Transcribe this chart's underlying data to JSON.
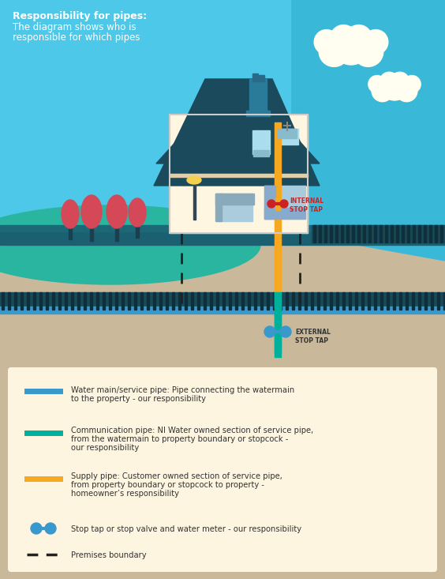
{
  "bg_sky": "#4dc8e8",
  "bg_ground": "#c9b99a",
  "hill_teal": "#2ab5a0",
  "hill_blue_right": "#3ab8d8",
  "road_dark": "#1a6070",
  "road_top": "#1d6878",
  "house_wall": "#fef6e0",
  "house_roof": "#1b4a5c",
  "chimney_blue": "#2a7a9a",
  "window_blue": "#4ab8d8",
  "fence_dark": "#1a4a5a",
  "tree_trunk": "#1a4050",
  "tree_red": "#d44858",
  "water_main": "#3a99cc",
  "comm_pipe": "#00b09a",
  "supply_pipe": "#f5a820",
  "stop_tap_blue": "#3a99cc",
  "int_stop_red": "#cc2222",
  "legend_bg": "#fdf5e0",
  "text_dark": "#333333",
  "cloud_color": "#fffef0",
  "title1": "Responsibility for pipes:",
  "title2": "The diagram shows who is",
  "title3": "responsible for which pipes",
  "legend1": "Water main/service pipe: Pipe connecting the watermain\nto the property - our responsibility",
  "legend2": "Communication pipe: NI Water owned section of service pipe,\nfrom the watermain to property boundary or stopcock -\nour responsibility",
  "legend3": "Supply pipe: Customer owned section of service pipe,\nfrom property boundary or stopcock to property -\nhomeowner’s responsibility",
  "legend4": "Stop tap or stop valve and water meter - our responsibility",
  "legend5": "Premises boundary"
}
